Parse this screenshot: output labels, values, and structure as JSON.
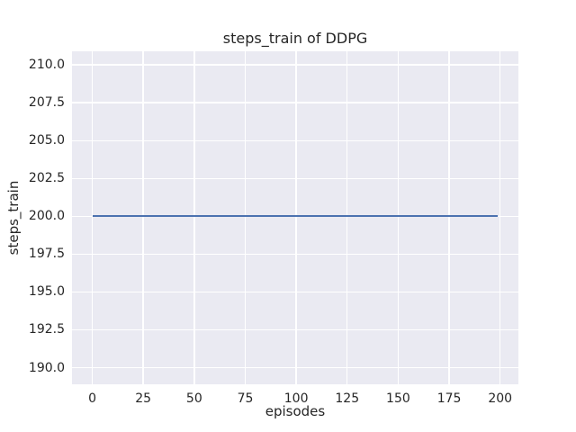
{
  "chart_data": {
    "type": "line",
    "title": "steps_train of DDPG",
    "xlabel": "episodes",
    "ylabel": "steps_train",
    "xticks": [
      {
        "value": 0,
        "label": "0"
      },
      {
        "value": 25,
        "label": "25"
      },
      {
        "value": 50,
        "label": "50"
      },
      {
        "value": 75,
        "label": "75"
      },
      {
        "value": 100,
        "label": "100"
      },
      {
        "value": 125,
        "label": "125"
      },
      {
        "value": 150,
        "label": "150"
      },
      {
        "value": 175,
        "label": "175"
      },
      {
        "value": 200,
        "label": "200"
      }
    ],
    "yticks": [
      {
        "value": 210.0,
        "label": "210.0"
      },
      {
        "value": 207.5,
        "label": "207.5"
      },
      {
        "value": 205.0,
        "label": "205.0"
      },
      {
        "value": 202.5,
        "label": "202.5"
      },
      {
        "value": 200.0,
        "label": "200.0"
      },
      {
        "value": 197.5,
        "label": "197.5"
      },
      {
        "value": 195.0,
        "label": "195.0"
      },
      {
        "value": 192.5,
        "label": "192.5"
      },
      {
        "value": 190.0,
        "label": "190.0"
      }
    ],
    "xlim": [
      -9.95,
      208.95
    ],
    "ylim": [
      188.9,
      210.9
    ],
    "grid": true,
    "legend": "none",
    "style": "seaborn-darkgrid",
    "colors": {
      "plot_background": "#eaeaf2",
      "figure_background": "#ffffff",
      "grid": "#ffffff",
      "line": "#4c72b0",
      "text": "#262626"
    },
    "series": [
      {
        "name": "steps_train",
        "shape": "constant",
        "y_value": 200,
        "x_start": 0,
        "x_end": 199
      }
    ]
  }
}
